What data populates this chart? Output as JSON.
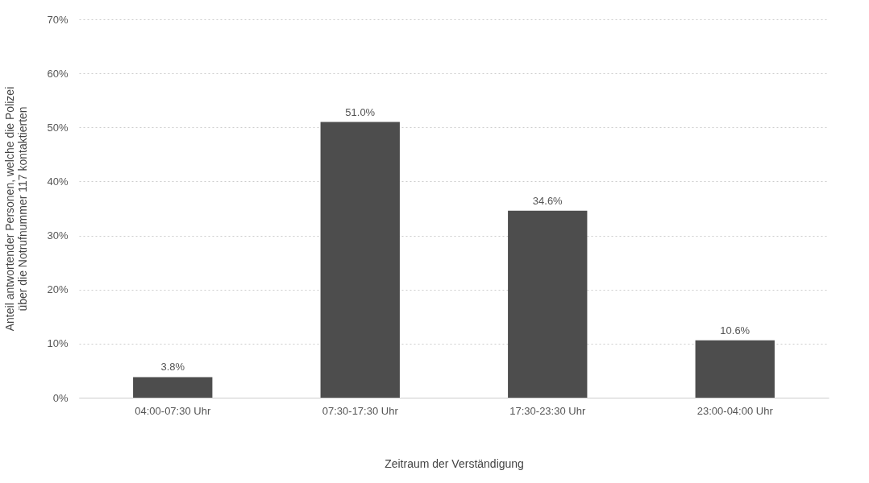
{
  "chart_data": {
    "type": "bar",
    "xlabel": "Zeitraum der Verständigung",
    "ylabel": "Anteil antwortender Personen, welche die Polizei\nüber die Notrufnummer 117 kontaktierten",
    "categories": [
      "04:00-07:30 Uhr",
      "07:30-17:30 Uhr",
      "17:30-23:30 Uhr",
      "23:00-04:00 Uhr"
    ],
    "values": [
      3.8,
      51.0,
      34.6,
      10.6
    ],
    "value_labels": [
      "3.8%",
      "51.0%",
      "34.6%",
      "10.6%"
    ],
    "color": "#4d4d4d",
    "ylim": [
      0,
      70
    ],
    "yticks": [
      {
        "value": 0,
        "label": "0%"
      },
      {
        "value": 10,
        "label": "10%"
      },
      {
        "value": 20,
        "label": "20%"
      },
      {
        "value": 30,
        "label": "30%"
      },
      {
        "value": 40,
        "label": "40%"
      },
      {
        "value": 50,
        "label": "50%"
      },
      {
        "value": 60,
        "label": "60%"
      },
      {
        "value": 70,
        "label": "70%"
      }
    ],
    "grid": "y"
  }
}
